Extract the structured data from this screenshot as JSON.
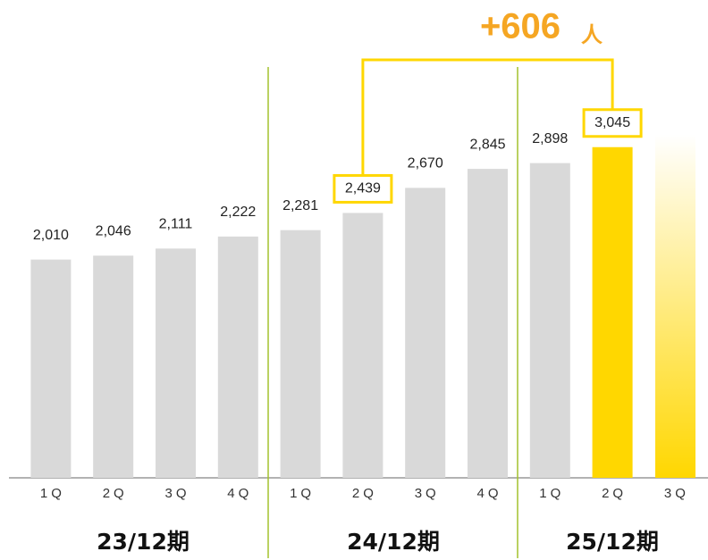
{
  "chart_data": {
    "type": "bar",
    "categories": [
      "1Q",
      "2Q",
      "3Q",
      "4Q",
      "1Q",
      "2Q",
      "3Q",
      "4Q",
      "1Q",
      "2Q",
      "3Q"
    ],
    "values": [
      2010,
      2046,
      2111,
      2222,
      2281,
      2439,
      2670,
      2845,
      2898,
      3045,
      null
    ],
    "value_labels": [
      "2,010",
      "2,046",
      "2,111",
      "2,222",
      "2,281",
      "2,439",
      "2,670",
      "2,845",
      "2,898",
      "3,045",
      null
    ],
    "colors": [
      "#d9d9d9",
      "#d9d9d9",
      "#d9d9d9",
      "#d9d9d9",
      "#d9d9d9",
      "#d9d9d9",
      "#d9d9d9",
      "#d9d9d9",
      "#d9d9d9",
      "#ffd700",
      null
    ],
    "ylim": [
      0,
      4400
    ],
    "groups": [
      "23/12期",
      "24/12期",
      "25/12期"
    ],
    "annotation": {
      "text": "+606",
      "unit": "人",
      "from": 5,
      "to": 9,
      "color": "#f5a623",
      "box_color": "#ffd700"
    }
  }
}
